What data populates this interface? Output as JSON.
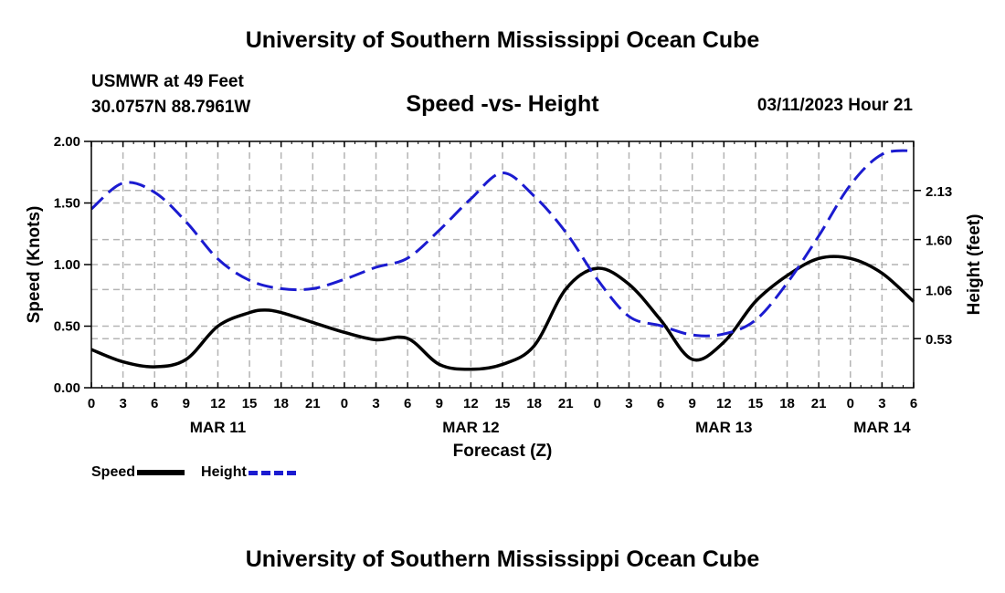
{
  "page": {
    "title": "University of Southern Mississippi Ocean Cube",
    "footer_title": "University of Southern Mississippi Ocean Cube",
    "station_name": "USMWR at 49 Feet",
    "coords": "30.0757N  88.7961W",
    "subtitle": "Speed -vs- Height",
    "datetime": "03/11/2023 Hour 21"
  },
  "colors": {
    "speed": "#000000",
    "height": "#1b1bd0",
    "grid": "#b4b4b4"
  },
  "chart_data": {
    "type": "line",
    "title": "Speed -vs- Height",
    "xlabel": "Forecast (Z)",
    "ylabel": "Speed (Knots)",
    "y2label": "Height (feet)",
    "x_unit": "hours from MAR 11 00Z",
    "xlim": [
      0,
      78
    ],
    "ylim": [
      0,
      2
    ],
    "y2lim": [
      0,
      2.66
    ],
    "x_ticks": [
      0,
      3,
      6,
      9,
      12,
      15,
      18,
      21,
      24,
      27,
      30,
      33,
      36,
      39,
      42,
      45,
      48,
      51,
      54,
      57,
      60,
      63,
      66,
      69,
      72,
      75,
      78
    ],
    "x_tick_labels": [
      "0",
      "3",
      "6",
      "9",
      "12",
      "15",
      "18",
      "21",
      "0",
      "3",
      "6",
      "9",
      "12",
      "15",
      "18",
      "21",
      "0",
      "3",
      "6",
      "9",
      "12",
      "15",
      "18",
      "21",
      "0",
      "3",
      "6"
    ],
    "date_labels": [
      {
        "x": 12,
        "label": "MAR 11"
      },
      {
        "x": 36,
        "label": "MAR 12"
      },
      {
        "x": 60,
        "label": "MAR 13"
      },
      {
        "x": 75,
        "label": "MAR 14"
      }
    ],
    "y_ticks": [
      0,
      0.5,
      1,
      1.5,
      2
    ],
    "y_tick_labels": [
      "0.00",
      "0.50",
      "1.00",
      "1.50",
      "2.00"
    ],
    "y2_ticks": [
      0.53,
      1.06,
      1.6,
      2.13
    ],
    "y2_tick_labels": [
      "0.53",
      "1.06",
      "1.60",
      "2.13"
    ],
    "legend": [
      "Speed",
      "Height"
    ],
    "series": [
      {
        "name": "Speed",
        "axis": "left",
        "style": "solid",
        "x": [
          0,
          3,
          6,
          9,
          12,
          15,
          16.5,
          18,
          21,
          24,
          27,
          30,
          33,
          36,
          39,
          42,
          45,
          48,
          51,
          54,
          57,
          60,
          63,
          66,
          69,
          72,
          75,
          78
        ],
        "values": [
          0.31,
          0.21,
          0.17,
          0.23,
          0.5,
          0.61,
          0.63,
          0.61,
          0.53,
          0.45,
          0.39,
          0.4,
          0.19,
          0.15,
          0.19,
          0.34,
          0.8,
          0.97,
          0.84,
          0.55,
          0.23,
          0.37,
          0.7,
          0.91,
          1.05,
          1.05,
          0.93,
          0.7
        ]
      },
      {
        "name": "Height",
        "axis": "right",
        "style": "dashed",
        "x": [
          0,
          3,
          6,
          9,
          12,
          15,
          18,
          21,
          24,
          27,
          30,
          33,
          36,
          39,
          42,
          45,
          48,
          51,
          54,
          57,
          60,
          63,
          66,
          69,
          72,
          75,
          78
        ],
        "values": [
          1.93,
          2.21,
          2.11,
          1.79,
          1.39,
          1.16,
          1.07,
          1.07,
          1.17,
          1.3,
          1.4,
          1.7,
          2.04,
          2.32,
          2.07,
          1.68,
          1.17,
          0.77,
          0.67,
          0.57,
          0.58,
          0.73,
          1.13,
          1.64,
          2.19,
          2.52,
          2.56
        ]
      }
    ]
  }
}
